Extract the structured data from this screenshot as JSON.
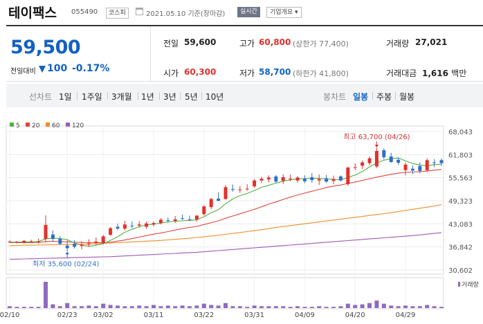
{
  "header": {
    "name": "테이팩스",
    "code": "055490",
    "market": "코스피",
    "date": "2021.05.10",
    "basis": "기준(장마감)",
    "realtime": "실시간",
    "company": "기업개요 ▾"
  },
  "price": {
    "current": "59,500",
    "change_label": "전일대비",
    "change": "100",
    "change_pct": "-0.17%",
    "prev_label": "전일",
    "prev": "59,600",
    "open_label": "시가",
    "open": "60,300",
    "high_label": "고가",
    "high": "60,800",
    "upper_limit": "(상한가 77,400)",
    "low_label": "저가",
    "low": "58,700",
    "lower_limit": "(하한가 41,800)",
    "volume_label": "거래량",
    "volume": "27,021",
    "amount_label": "거래대금",
    "amount": "1,616",
    "amount_unit": "백만"
  },
  "periods": {
    "line_label": "선차트",
    "items": [
      "1일",
      "1주일",
      "3개월",
      "1년",
      "3년",
      "5년",
      "10년"
    ],
    "candle_label": "봉차트",
    "candle_items": [
      "일봉",
      "주봉",
      "월봉"
    ],
    "active": "일봉"
  },
  "colors": {
    "up": "#e3302c",
    "down": "#2f6fc9",
    "ma5": "#52b043",
    "ma20": "#e0463a",
    "ma60": "#ef8d2b",
    "ma120": "#9b59b6",
    "volume": "#8e6bbf"
  },
  "chart_data": {
    "type": "candlestick",
    "legend": [
      {
        "name": "5",
        "color": "#52b043"
      },
      {
        "name": "20",
        "color": "#e0463a"
      },
      {
        "name": "60",
        "color": "#ef8d2b"
      },
      {
        "name": "120",
        "color": "#9b59b6"
      }
    ],
    "y_ticks": [
      "68,043",
      "61,803",
      "55,563",
      "49,323",
      "43,083",
      "36,842",
      "30,602"
    ],
    "ylim": [
      30602,
      68043
    ],
    "x_ticks": [
      {
        "i": 0,
        "label": "02/10"
      },
      {
        "i": 8,
        "label": "02/23"
      },
      {
        "i": 13,
        "label": "03/02"
      },
      {
        "i": 20,
        "label": "03/11"
      },
      {
        "i": 27,
        "label": "03/22"
      },
      {
        "i": 34,
        "label": "03/31"
      },
      {
        "i": 41,
        "label": "04/09"
      },
      {
        "i": 48,
        "label": "04/20"
      },
      {
        "i": 55,
        "label": "04/29"
      }
    ],
    "high_annotation": {
      "i": 51,
      "value": 63700,
      "text": "최고 63,700 (04/26)"
    },
    "low_annotation": {
      "i": 8,
      "value": 35600,
      "text": "최저 35,600 (02/24)"
    },
    "volume_label": "거래량",
    "candles": [
      [
        38300,
        38600,
        38000,
        38300
      ],
      [
        38100,
        38400,
        37800,
        38200
      ],
      [
        38000,
        38700,
        37800,
        38500
      ],
      [
        38300,
        38800,
        37900,
        38400
      ],
      [
        38100,
        39100,
        37800,
        38300
      ],
      [
        39000,
        45400,
        38100,
        42800
      ],
      [
        40200,
        41300,
        38300,
        39000
      ],
      [
        39000,
        39800,
        37300,
        37700
      ],
      [
        37200,
        38600,
        35600,
        36500
      ],
      [
        37700,
        38700,
        36400,
        36900
      ],
      [
        37100,
        38400,
        36200,
        37400
      ],
      [
        37500,
        38900,
        36900,
        37800
      ],
      [
        37900,
        39400,
        37400,
        38300
      ],
      [
        37900,
        40100,
        37500,
        39700
      ],
      [
        40100,
        42200,
        39900,
        41900
      ],
      [
        42300,
        43100,
        41400,
        41800
      ],
      [
        41800,
        43900,
        41300,
        42900
      ],
      [
        42600,
        43700,
        41900,
        42500
      ],
      [
        42600,
        43800,
        42100,
        42900
      ],
      [
        42300,
        43700,
        41800,
        43200
      ],
      [
        42900,
        43700,
        42400,
        43300
      ],
      [
        43300,
        44600,
        42900,
        44200
      ],
      [
        44100,
        44800,
        43400,
        44000
      ],
      [
        43900,
        45200,
        43300,
        44300
      ],
      [
        44600,
        45600,
        44100,
        44400
      ],
      [
        44300,
        45300,
        43900,
        44100
      ],
      [
        44300,
        45500,
        43700,
        45300
      ],
      [
        45700,
        48100,
        45300,
        47800
      ],
      [
        47600,
        50100,
        47100,
        49800
      ],
      [
        49900,
        51600,
        49200,
        49300
      ],
      [
        49800,
        53600,
        49600,
        53000
      ],
      [
        52500,
        53700,
        51800,
        52400
      ],
      [
        52200,
        53300,
        51500,
        52400
      ],
      [
        52600,
        53800,
        52000,
        52600
      ],
      [
        53200,
        55200,
        52900,
        54800
      ],
      [
        54800,
        55800,
        54100,
        55300
      ],
      [
        55100,
        56200,
        54300,
        55600
      ],
      [
        55900,
        56300,
        54200,
        54500
      ],
      [
        54700,
        56500,
        53900,
        55700
      ],
      [
        55200,
        56400,
        54600,
        55300
      ],
      [
        54800,
        56000,
        54200,
        55600
      ],
      [
        55300,
        56200,
        54100,
        54600
      ],
      [
        55700,
        56800,
        54200,
        54900
      ],
      [
        54800,
        56400,
        53600,
        55200
      ],
      [
        55400,
        56300,
        54200,
        54500
      ],
      [
        54700,
        56100,
        53800,
        55200
      ],
      [
        55900,
        56200,
        54600,
        54800
      ],
      [
        53800,
        58600,
        53400,
        58300
      ],
      [
        58300,
        59400,
        57600,
        58400
      ],
      [
        58800,
        60200,
        57900,
        59700
      ],
      [
        59500,
        61300,
        58900,
        60800
      ],
      [
        58600,
        63700,
        58200,
        62800
      ],
      [
        63000,
        63500,
        60500,
        61100
      ],
      [
        61300,
        62300,
        59600,
        59800
      ],
      [
        60400,
        61100,
        59000,
        59600
      ],
      [
        57600,
        59700,
        56200,
        59100
      ],
      [
        58000,
        58900,
        56500,
        57500
      ],
      [
        58700,
        59700,
        56700,
        57400
      ],
      [
        57600,
        60800,
        57100,
        60300
      ],
      [
        59700,
        60600,
        58400,
        59600
      ],
      [
        60300,
        60800,
        58700,
        59500
      ]
    ],
    "volumes": [
      3,
      2,
      2,
      2,
      2,
      42,
      6,
      3,
      8,
      3,
      3,
      4,
      3,
      7,
      5,
      4,
      3,
      3,
      4,
      3,
      5,
      3,
      4,
      3,
      4,
      3,
      4,
      7,
      5,
      4,
      8,
      3,
      3,
      2,
      4,
      3,
      3,
      3,
      3,
      2,
      3,
      2,
      2,
      3,
      2,
      2,
      3,
      7,
      5,
      6,
      8,
      12,
      7,
      4,
      3,
      4,
      3,
      3,
      5,
      3,
      2
    ],
    "ma5": [
      38100,
      38150,
      38200,
      38230,
      38300,
      39000,
      39200,
      39100,
      38800,
      37900,
      37300,
      37000,
      37300,
      37700,
      38600,
      39600,
      40800,
      41600,
      42300,
      42800,
      43000,
      43300,
      43600,
      43800,
      43900,
      44000,
      44200,
      45000,
      46100,
      46900,
      48500,
      49800,
      50700,
      51300,
      52100,
      53000,
      53500,
      54100,
      54600,
      55000,
      55200,
      55300,
      55400,
      55400,
      55200,
      55100,
      55000,
      55600,
      56300,
      57200,
      58500,
      59500,
      60300,
      60700,
      60900,
      60100,
      59400,
      59000,
      58800,
      59100,
      59200
    ],
    "ma20": [
      38000,
      38000,
      38000,
      38000,
      38050,
      38250,
      38350,
      38300,
      38200,
      38100,
      38050,
      38000,
      38000,
      38000,
      38100,
      38400,
      38700,
      39100,
      39500,
      39900,
      40300,
      40600,
      41000,
      41400,
      41800,
      42100,
      42400,
      42900,
      43400,
      43900,
      44600,
      45200,
      45800,
      46400,
      47000,
      47700,
      48400,
      49000,
      49700,
      50300,
      50900,
      51400,
      51900,
      52400,
      52900,
      53300,
      53600,
      54000,
      54400,
      54800,
      55300,
      55700,
      56100,
      56500,
      56800,
      57000,
      57100,
      57200,
      57400,
      57600,
      57800
    ],
    "ma60": [
      37200,
      37250,
      37300,
      37300,
      37350,
      37400,
      37450,
      37500,
      37500,
      37500,
      37550,
      37600,
      37700,
      37800,
      37900,
      38000,
      38100,
      38200,
      38300,
      38400,
      38500,
      38600,
      38750,
      38900,
      39050,
      39200,
      39400,
      39600,
      39800,
      40000,
      40250,
      40500,
      40750,
      41000,
      41250,
      41500,
      41800,
      42100,
      42350,
      42600,
      42850,
      43100,
      43350,
      43600,
      43850,
      44100,
      44350,
      44600,
      44850,
      45100,
      45350,
      45600,
      45850,
      46100,
      46400,
      46700,
      47000,
      47300,
      47600,
      47900,
      48300
    ],
    "ma120": [
      33500,
      33550,
      33600,
      33650,
      33700,
      33750,
      33800,
      33850,
      33900,
      33950,
      34000,
      34050,
      34100,
      34150,
      34200,
      34300,
      34400,
      34500,
      34600,
      34700,
      34800,
      34900,
      35000,
      35100,
      35200,
      35300,
      35400,
      35550,
      35700,
      35850,
      36000,
      36150,
      36300,
      36450,
      36600,
      36750,
      36900,
      37050,
      37200,
      37350,
      37500,
      37650,
      37800,
      37950,
      38100,
      38250,
      38400,
      38550,
      38700,
      38850,
      39000,
      39150,
      39300,
      39450,
      39600,
      39750,
      39900,
      40100,
      40300,
      40500,
      40700
    ]
  }
}
